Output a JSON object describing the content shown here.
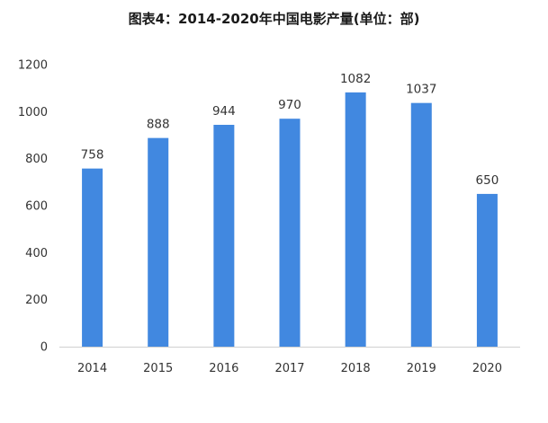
{
  "chart_data": {
    "type": "bar",
    "title": "图表4：2014-2020年中国电影产量(单位：部)",
    "xlabel": "",
    "ylabel": "",
    "categories": [
      "2014",
      "2015",
      "2016",
      "2017",
      "2018",
      "2019",
      "2020"
    ],
    "values": [
      758,
      888,
      944,
      970,
      1082,
      1037,
      650
    ],
    "ylim": [
      0,
      1200
    ],
    "yticks": [
      0,
      200,
      400,
      600,
      800,
      1000,
      1200
    ],
    "grid": false,
    "legend": "none",
    "bar_color": "#4188E0",
    "data_labels": true
  }
}
